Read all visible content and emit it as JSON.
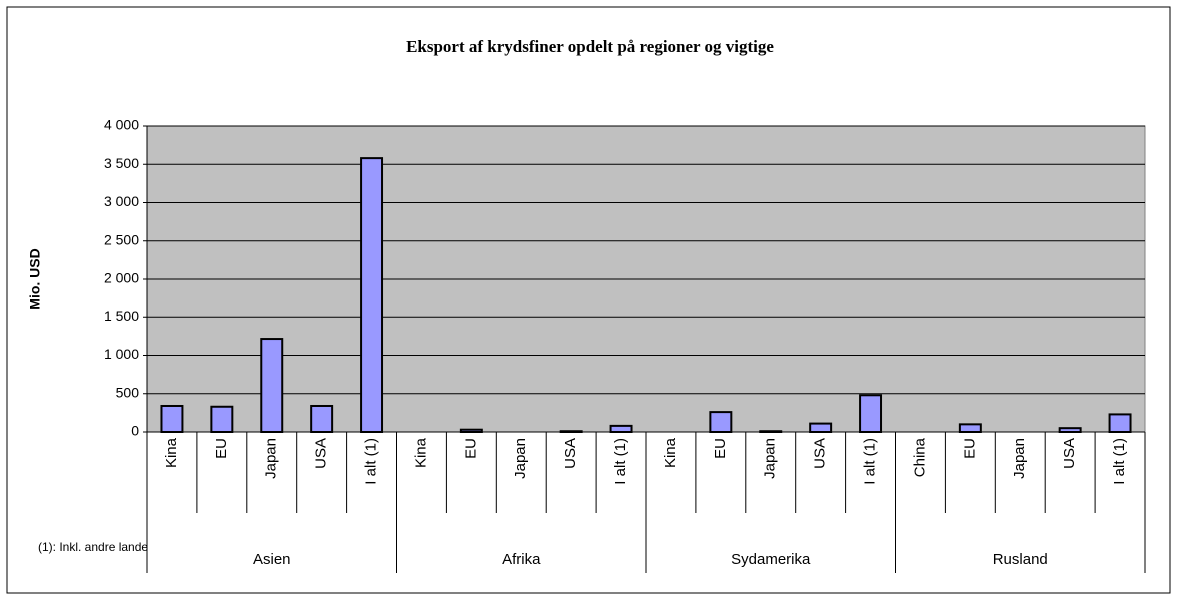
{
  "chart_data": {
    "type": "bar",
    "title": "Eksport af krydsfiner opdelt på regioner og vigtige",
    "y_label": "Mio. USD",
    "note": "(1): Inkl. andre lande",
    "groups": [
      "Asien",
      "Afrika",
      "Sydamerika",
      "Rusland"
    ],
    "categories": [
      "Kina",
      "EU",
      "Japan",
      "USA",
      "I alt (1)",
      "Kina",
      "EU",
      "Japan",
      "USA",
      "I alt (1)",
      "Kina",
      "EU",
      "Japan",
      "USA",
      "I alt (1)",
      "China",
      "EU",
      "Japan",
      "USA",
      "I alt (1)"
    ],
    "values": [
      340,
      330,
      1215,
      340,
      3580,
      0,
      30,
      0,
      10,
      80,
      0,
      260,
      10,
      110,
      480,
      0,
      100,
      0,
      50,
      230
    ],
    "color": "#9999ff",
    "ylim": [
      0,
      4000
    ],
    "yticks": [
      0,
      500,
      {
        "value": 1000,
        "label": "1 000"
      },
      {
        "value": 1500,
        "label": "1 500"
      },
      {
        "value": 2000,
        "label": "2 000"
      },
      {
        "value": 2500,
        "label": "2 500"
      },
      {
        "value": 3000,
        "label": "3 000"
      },
      {
        "value": 3500,
        "label": "3 500"
      },
      {
        "value": 4000,
        "label": "4 000"
      }
    ],
    "grid": true
  }
}
